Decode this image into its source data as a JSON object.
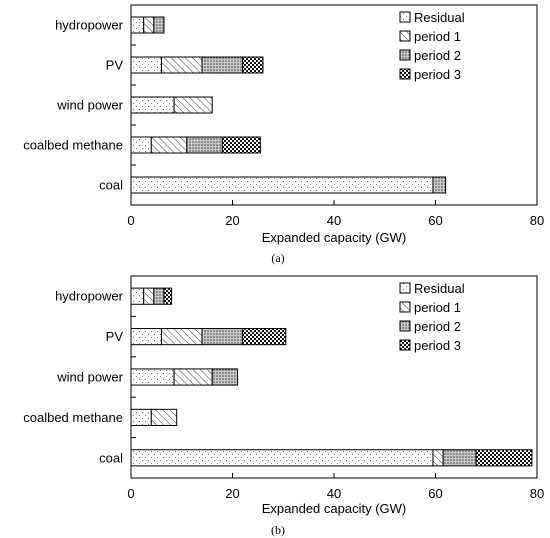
{
  "chart_data": [
    {
      "type": "bar",
      "orientation": "horizontal",
      "stacked": true,
      "panel_label": "(a)",
      "categories": [
        "hydropower",
        "PV",
        "wind power",
        "coalbed  methane",
        "coal"
      ],
      "series": [
        {
          "name": "Residual",
          "pattern": "dots",
          "values": [
            2.5,
            6,
            8.5,
            4,
            59.5
          ]
        },
        {
          "name": "period 1",
          "pattern": "hatch",
          "values": [
            2,
            8,
            7.5,
            7,
            0
          ]
        },
        {
          "name": "period 2",
          "pattern": "dense-dots",
          "values": [
            2,
            8,
            0,
            7,
            2.5
          ]
        },
        {
          "name": "period 3",
          "pattern": "checker",
          "values": [
            0,
            4,
            0,
            7.5,
            0
          ]
        }
      ],
      "xlabel": "Expanded capacity (GW)",
      "ylabel": "",
      "xlim": [
        0,
        80
      ],
      "xticks": [
        0,
        20,
        40,
        60,
        80
      ],
      "grid": false,
      "legend_position": "top-right"
    },
    {
      "type": "bar",
      "orientation": "horizontal",
      "stacked": true,
      "panel_label": "(b)",
      "categories": [
        "hydropower",
        "PV",
        "wind power",
        "coalbed  methane",
        "coal"
      ],
      "series": [
        {
          "name": "Residual",
          "pattern": "dots",
          "values": [
            2.5,
            6,
            8.5,
            4,
            59.5
          ]
        },
        {
          "name": "period 1",
          "pattern": "hatch",
          "values": [
            2,
            8,
            7.5,
            5,
            2
          ]
        },
        {
          "name": "period 2",
          "pattern": "dense-dots",
          "values": [
            2,
            8,
            5,
            0,
            6.5
          ]
        },
        {
          "name": "period 3",
          "pattern": "checker",
          "values": [
            1.5,
            8.5,
            0,
            0,
            11
          ]
        }
      ],
      "xlabel": "Expanded capacity (GW)",
      "ylabel": "",
      "xlim": [
        0,
        80
      ],
      "xticks": [
        0,
        20,
        40,
        60,
        80
      ],
      "grid": false,
      "legend_position": "top-right"
    }
  ]
}
